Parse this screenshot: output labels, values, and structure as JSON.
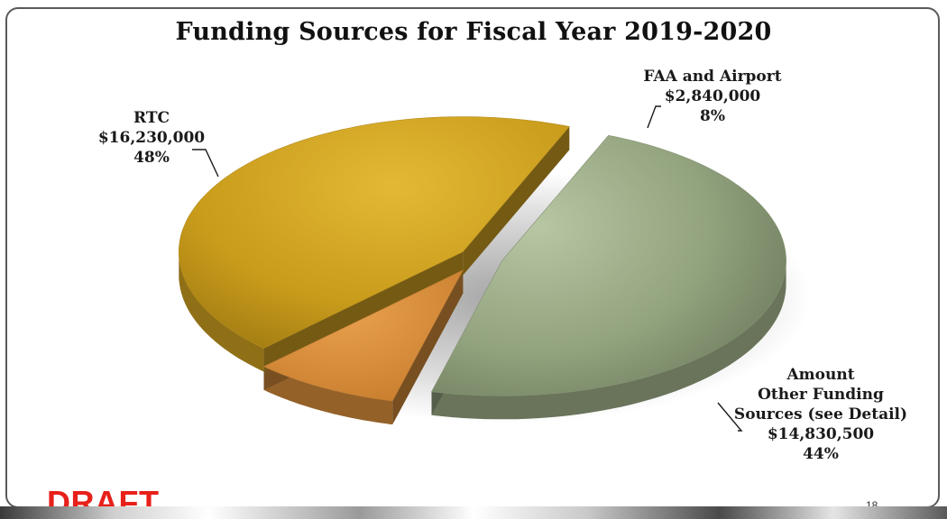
{
  "chart_data": {
    "type": "pie",
    "title": "Funding Sources for Fiscal Year 2019-2020",
    "slices": [
      {
        "name": "RTC",
        "lines": [
          "RTC",
          "$16,230,000",
          "48%"
        ],
        "value": 16230000,
        "percent": 48,
        "color": "#9bab86"
      },
      {
        "name": "FAA and Airport",
        "lines": [
          "FAA and Airport",
          "$2,840,000",
          "8%"
        ],
        "value": 2840000,
        "percent": 8,
        "color": "#d98f3c"
      },
      {
        "name": "Amount Other Funding Sources (see Detail)",
        "lines": [
          "Amount",
          "Other Funding",
          "Sources (see Detail)",
          "$14,830,500",
          "44%"
        ],
        "value": 14830500,
        "percent": 44,
        "color": "#d2a422"
      }
    ],
    "legend": "none",
    "style": "3d-exploded"
  },
  "slide": {
    "watermark": "DRAFT",
    "page_number": "18"
  }
}
